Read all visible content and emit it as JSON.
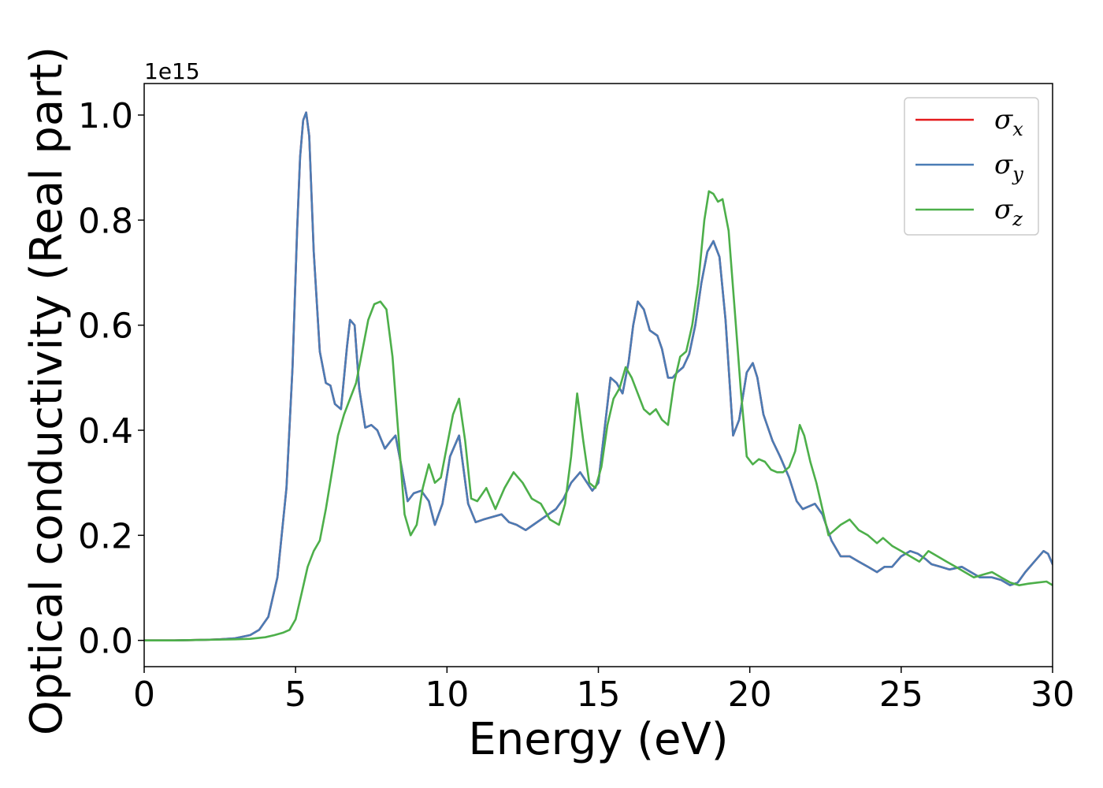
{
  "chart_data": {
    "type": "line",
    "title": "",
    "xlabel": "Energy (eV)",
    "ylabel": "Optical conductivity (Real part)",
    "y_offset_label": "1e15",
    "y_scale_factor": 1000000000000000.0,
    "xlim": [
      0,
      30
    ],
    "ylim": [
      -0.05,
      1.06
    ],
    "x_ticks": [
      0,
      5,
      10,
      15,
      20,
      25,
      30
    ],
    "x_tick_labels": [
      "0",
      "5",
      "10",
      "15",
      "20",
      "25",
      "30"
    ],
    "y_ticks": [
      0.0,
      0.2,
      0.4,
      0.6,
      0.8,
      1.0
    ],
    "y_tick_labels": [
      "0.0",
      "0.2",
      "0.4",
      "0.6",
      "0.8",
      "1.0"
    ],
    "grid": false,
    "legend_position": "top-right",
    "series": [
      {
        "name": "σ_x",
        "legend_base": "σ",
        "legend_sub": "x",
        "color": "#e41a1c",
        "x": [
          0,
          1,
          2,
          2.5,
          3,
          3.5,
          3.8,
          4.1,
          4.4,
          4.7,
          4.9,
          5.05,
          5.15,
          5.25,
          5.35,
          5.45,
          5.6,
          5.8,
          6.0,
          6.15,
          6.3,
          6.5,
          6.7,
          6.8,
          6.95,
          7.1,
          7.3,
          7.5,
          7.7,
          7.95,
          8.15,
          8.3,
          8.5,
          8.7,
          8.9,
          9.15,
          9.4,
          9.6,
          9.85,
          10.1,
          10.4,
          10.7,
          10.95,
          11.2,
          11.5,
          11.8,
          12.05,
          12.3,
          12.6,
          12.85,
          13.1,
          13.35,
          13.6,
          13.85,
          14.1,
          14.4,
          14.8,
          15.0,
          15.2,
          15.4,
          15.6,
          15.8,
          16.0,
          16.15,
          16.3,
          16.5,
          16.7,
          16.95,
          17.1,
          17.3,
          17.45,
          17.6,
          17.8,
          18.0,
          18.2,
          18.4,
          18.6,
          18.8,
          19.0,
          19.2,
          19.45,
          19.65,
          19.9,
          20.1,
          20.25,
          20.45,
          20.75,
          21.0,
          21.3,
          21.55,
          21.75,
          21.95,
          22.15,
          22.4,
          22.7,
          23.0,
          23.3,
          23.6,
          23.9,
          24.2,
          24.45,
          24.7,
          25.0,
          25.3,
          25.55,
          25.8,
          26.0,
          26.3,
          26.6,
          27.0,
          27.3,
          27.6,
          28.0,
          28.3,
          28.6,
          28.85,
          29.1,
          29.4,
          29.7,
          29.85,
          30.0
        ],
        "y": [
          0.0,
          0.0,
          0.001,
          0.002,
          0.004,
          0.01,
          0.02,
          0.045,
          0.12,
          0.29,
          0.52,
          0.78,
          0.92,
          0.99,
          1.005,
          0.96,
          0.74,
          0.55,
          0.49,
          0.485,
          0.45,
          0.44,
          0.56,
          0.61,
          0.6,
          0.48,
          0.405,
          0.41,
          0.4,
          0.365,
          0.38,
          0.39,
          0.33,
          0.265,
          0.28,
          0.285,
          0.265,
          0.22,
          0.26,
          0.35,
          0.39,
          0.26,
          0.225,
          0.23,
          0.235,
          0.24,
          0.225,
          0.22,
          0.21,
          0.22,
          0.23,
          0.24,
          0.25,
          0.27,
          0.3,
          0.32,
          0.285,
          0.3,
          0.4,
          0.5,
          0.49,
          0.47,
          0.53,
          0.6,
          0.645,
          0.63,
          0.59,
          0.58,
          0.555,
          0.5,
          0.5,
          0.51,
          0.52,
          0.545,
          0.6,
          0.68,
          0.74,
          0.76,
          0.73,
          0.61,
          0.39,
          0.42,
          0.51,
          0.528,
          0.5,
          0.43,
          0.38,
          0.35,
          0.31,
          0.265,
          0.25,
          0.255,
          0.26,
          0.24,
          0.19,
          0.16,
          0.16,
          0.15,
          0.14,
          0.13,
          0.14,
          0.14,
          0.16,
          0.17,
          0.165,
          0.155,
          0.145,
          0.14,
          0.135,
          0.14,
          0.13,
          0.12,
          0.12,
          0.115,
          0.105,
          0.11,
          0.13,
          0.15,
          0.17,
          0.165,
          0.145
        ]
      },
      {
        "name": "σ_y",
        "legend_base": "σ",
        "legend_sub": "y",
        "color": "#4a7cb5",
        "x": [
          0,
          1,
          2,
          2.5,
          3,
          3.5,
          3.8,
          4.1,
          4.4,
          4.7,
          4.9,
          5.05,
          5.15,
          5.25,
          5.35,
          5.45,
          5.6,
          5.8,
          6.0,
          6.15,
          6.3,
          6.5,
          6.7,
          6.8,
          6.95,
          7.1,
          7.3,
          7.5,
          7.7,
          7.95,
          8.15,
          8.3,
          8.5,
          8.7,
          8.9,
          9.15,
          9.4,
          9.6,
          9.85,
          10.1,
          10.4,
          10.7,
          10.95,
          11.2,
          11.5,
          11.8,
          12.05,
          12.3,
          12.6,
          12.85,
          13.1,
          13.35,
          13.6,
          13.85,
          14.1,
          14.4,
          14.8,
          15.0,
          15.2,
          15.4,
          15.6,
          15.8,
          16.0,
          16.15,
          16.3,
          16.5,
          16.7,
          16.95,
          17.1,
          17.3,
          17.45,
          17.6,
          17.8,
          18.0,
          18.2,
          18.4,
          18.6,
          18.8,
          19.0,
          19.2,
          19.45,
          19.65,
          19.9,
          20.1,
          20.25,
          20.45,
          20.75,
          21.0,
          21.3,
          21.55,
          21.75,
          21.95,
          22.15,
          22.4,
          22.7,
          23.0,
          23.3,
          23.6,
          23.9,
          24.2,
          24.45,
          24.7,
          25.0,
          25.3,
          25.55,
          25.8,
          26.0,
          26.3,
          26.6,
          27.0,
          27.3,
          27.6,
          28.0,
          28.3,
          28.6,
          28.85,
          29.1,
          29.4,
          29.7,
          29.85,
          30.0
        ],
        "y": [
          0.0,
          0.0,
          0.001,
          0.002,
          0.004,
          0.01,
          0.02,
          0.045,
          0.12,
          0.29,
          0.52,
          0.78,
          0.92,
          0.99,
          1.005,
          0.96,
          0.74,
          0.55,
          0.49,
          0.485,
          0.45,
          0.44,
          0.56,
          0.61,
          0.6,
          0.48,
          0.405,
          0.41,
          0.4,
          0.365,
          0.38,
          0.39,
          0.33,
          0.265,
          0.28,
          0.285,
          0.265,
          0.22,
          0.26,
          0.35,
          0.39,
          0.26,
          0.225,
          0.23,
          0.235,
          0.24,
          0.225,
          0.22,
          0.21,
          0.22,
          0.23,
          0.24,
          0.25,
          0.27,
          0.3,
          0.32,
          0.285,
          0.3,
          0.4,
          0.5,
          0.49,
          0.47,
          0.53,
          0.6,
          0.645,
          0.63,
          0.59,
          0.58,
          0.555,
          0.5,
          0.5,
          0.51,
          0.52,
          0.545,
          0.6,
          0.68,
          0.74,
          0.76,
          0.73,
          0.61,
          0.39,
          0.42,
          0.51,
          0.528,
          0.5,
          0.43,
          0.38,
          0.35,
          0.31,
          0.265,
          0.25,
          0.255,
          0.26,
          0.24,
          0.19,
          0.16,
          0.16,
          0.15,
          0.14,
          0.13,
          0.14,
          0.14,
          0.16,
          0.17,
          0.165,
          0.155,
          0.145,
          0.14,
          0.135,
          0.14,
          0.13,
          0.12,
          0.12,
          0.115,
          0.105,
          0.11,
          0.13,
          0.15,
          0.17,
          0.165,
          0.145
        ]
      },
      {
        "name": "σ_z",
        "legend_base": "σ",
        "legend_sub": "z",
        "color": "#4daf4a",
        "x": [
          0,
          1,
          2,
          3,
          3.5,
          4,
          4.3,
          4.6,
          4.8,
          5.0,
          5.2,
          5.4,
          5.6,
          5.8,
          6.0,
          6.2,
          6.4,
          6.6,
          6.8,
          7.0,
          7.2,
          7.4,
          7.6,
          7.8,
          8.0,
          8.2,
          8.4,
          8.6,
          8.8,
          9.0,
          9.2,
          9.4,
          9.6,
          9.8,
          10.0,
          10.2,
          10.4,
          10.6,
          10.8,
          11.0,
          11.3,
          11.6,
          11.9,
          12.2,
          12.5,
          12.8,
          13.1,
          13.4,
          13.7,
          13.9,
          14.1,
          14.3,
          14.5,
          14.7,
          14.9,
          15.1,
          15.3,
          15.5,
          15.7,
          15.9,
          16.1,
          16.3,
          16.5,
          16.7,
          16.9,
          17.1,
          17.3,
          17.5,
          17.7,
          17.9,
          18.1,
          18.3,
          18.5,
          18.65,
          18.8,
          18.95,
          19.1,
          19.3,
          19.5,
          19.7,
          19.9,
          20.1,
          20.3,
          20.5,
          20.7,
          20.9,
          21.1,
          21.3,
          21.5,
          21.65,
          21.8,
          22.0,
          22.2,
          22.4,
          22.6,
          22.8,
          23.0,
          23.3,
          23.6,
          23.9,
          24.2,
          24.4,
          24.7,
          25.0,
          25.3,
          25.6,
          25.9,
          26.2,
          26.5,
          26.8,
          27.1,
          27.4,
          27.7,
          28.0,
          28.3,
          28.6,
          28.9,
          29.2,
          29.5,
          29.8,
          30.0
        ],
        "y": [
          0.0,
          0.0,
          0.001,
          0.002,
          0.003,
          0.006,
          0.01,
          0.015,
          0.02,
          0.04,
          0.09,
          0.14,
          0.17,
          0.19,
          0.25,
          0.32,
          0.39,
          0.43,
          0.46,
          0.49,
          0.55,
          0.61,
          0.64,
          0.645,
          0.63,
          0.54,
          0.39,
          0.24,
          0.2,
          0.22,
          0.29,
          0.335,
          0.3,
          0.31,
          0.37,
          0.43,
          0.46,
          0.38,
          0.27,
          0.265,
          0.29,
          0.25,
          0.29,
          0.32,
          0.3,
          0.27,
          0.26,
          0.23,
          0.22,
          0.26,
          0.35,
          0.47,
          0.38,
          0.3,
          0.29,
          0.33,
          0.41,
          0.46,
          0.48,
          0.52,
          0.5,
          0.47,
          0.44,
          0.43,
          0.44,
          0.42,
          0.41,
          0.49,
          0.54,
          0.55,
          0.6,
          0.68,
          0.8,
          0.855,
          0.85,
          0.835,
          0.84,
          0.78,
          0.63,
          0.48,
          0.35,
          0.335,
          0.345,
          0.34,
          0.325,
          0.32,
          0.32,
          0.33,
          0.36,
          0.41,
          0.39,
          0.34,
          0.3,
          0.25,
          0.2,
          0.21,
          0.22,
          0.23,
          0.21,
          0.2,
          0.185,
          0.195,
          0.18,
          0.17,
          0.16,
          0.15,
          0.17,
          0.16,
          0.15,
          0.14,
          0.13,
          0.12,
          0.125,
          0.13,
          0.12,
          0.11,
          0.105,
          0.108,
          0.11,
          0.112,
          0.105
        ]
      }
    ]
  }
}
